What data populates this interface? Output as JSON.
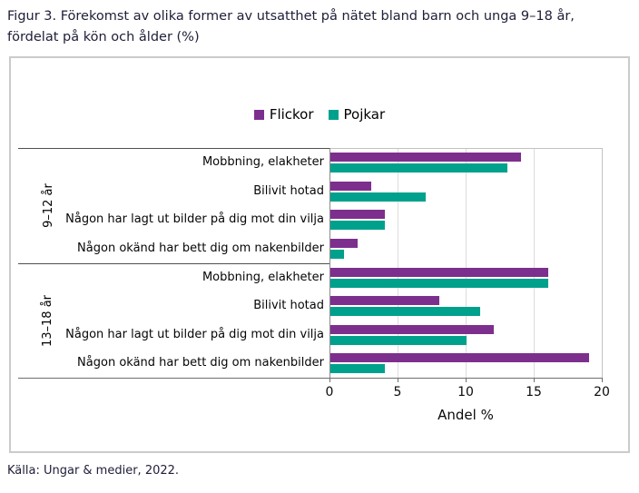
{
  "page": {
    "title_lines": [
      "Figur 3. Förekomst av olika former av utsatthet på nätet bland barn och unga 9–18 år,",
      "fördelat på kön och ålder (%)"
    ],
    "source": "Källa: Ungar & medier, 2022."
  },
  "chart_data": {
    "type": "bar",
    "orientation": "horizontal",
    "xlabel": "Andel %",
    "xlim": [
      0,
      20
    ],
    "xticks": [
      0,
      5,
      10,
      15,
      20
    ],
    "grid": true,
    "legend_position": "top-center",
    "series_meta": [
      {
        "name": "Flickor",
        "color": "#7d2f8e"
      },
      {
        "name": "Pojkar",
        "color": "#00a18c"
      }
    ],
    "groups": [
      {
        "label": "9–12 år",
        "categories": [
          "Mobbning, elakheter",
          "Bilivit hotad",
          "Någon har lagt ut bilder på dig mot din vilja",
          "Någon okänd har bett dig om nakenbilder"
        ],
        "series": [
          {
            "name": "Flickor",
            "values": [
              14,
              3,
              4,
              2
            ]
          },
          {
            "name": "Pojkar",
            "values": [
              13,
              7,
              4,
              1
            ]
          }
        ]
      },
      {
        "label": "13–18 år",
        "categories": [
          "Mobbning, elakheter",
          "Bilivit hotad",
          "Någon har lagt ut bilder på dig mot din vilja",
          "Någon okänd har bett dig om nakenbilder"
        ],
        "series": [
          {
            "name": "Flickor",
            "values": [
              16,
              8,
              12,
              19
            ]
          },
          {
            "name": "Pojkar",
            "values": [
              16,
              11,
              10,
              4
            ]
          }
        ]
      }
    ]
  }
}
